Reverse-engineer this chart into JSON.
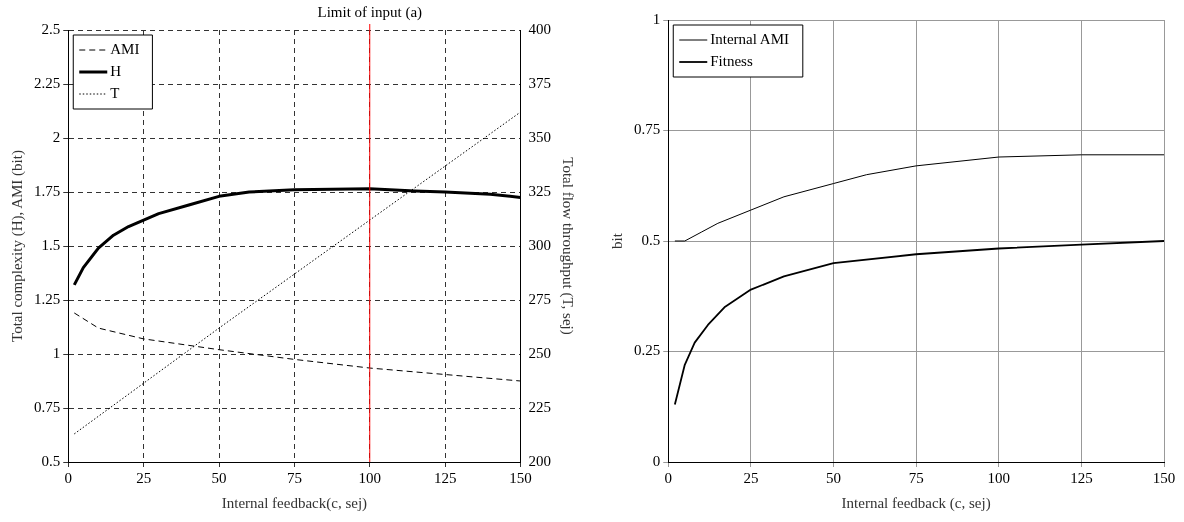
{
  "chart_data": [
    {
      "type": "line",
      "xlabel": "Internal feedback(c, sej)",
      "ylabel": "Total complexity (H), AMI (bit)",
      "y2label": "Total flow throughput (T, sej)",
      "xlim": [
        0,
        150
      ],
      "xticks": [
        0,
        25,
        50,
        75,
        100,
        125,
        150
      ],
      "ylim": [
        0.5,
        2.5
      ],
      "yticks": [
        0.5,
        0.75,
        1,
        1.25,
        1.5,
        1.75,
        2,
        2.25,
        2.5
      ],
      "y2lim": [
        200,
        400
      ],
      "y2ticks": [
        200,
        225,
        250,
        275,
        300,
        325,
        350,
        375,
        400
      ],
      "grid": true,
      "legend": "top left",
      "marker": "none",
      "ref_lines": [
        {
          "axis": "x",
          "value": 100,
          "label": "Limit of input (a)",
          "color": "#ff0000"
        }
      ],
      "series": [
        {
          "name": "AMI",
          "color": "#000000",
          "line_style": "dashed",
          "x": [
            2,
            10,
            25,
            40,
            50,
            75,
            100,
            125,
            150
          ],
          "values": [
            1.19,
            1.12,
            1.07,
            1.04,
            1.02,
            0.975,
            0.935,
            0.905,
            0.875
          ]
        },
        {
          "name": "H",
          "color": "#000000",
          "line_style": "solid",
          "x": [
            2,
            5,
            10,
            15,
            20,
            25,
            30,
            40,
            50,
            60,
            75,
            100,
            115,
            125,
            140,
            150
          ],
          "values": [
            1.32,
            1.4,
            1.49,
            1.55,
            1.59,
            1.62,
            1.65,
            1.69,
            1.73,
            1.75,
            1.76,
            1.765,
            1.755,
            1.75,
            1.74,
            1.725
          ]
        },
        {
          "name": "T",
          "color": "#000000",
          "line_style": "dotted",
          "axis": "y2",
          "x": [
            2,
            50,
            100,
            150
          ],
          "values": [
            213,
            262,
            312,
            362
          ]
        }
      ]
    },
    {
      "type": "line",
      "xlabel": "Internal feedback (c, sej)",
      "ylabel": "bit",
      "xlim": [
        0,
        150
      ],
      "xticks": [
        0,
        25,
        50,
        75,
        100,
        125,
        150
      ],
      "ylim": [
        0,
        1
      ],
      "yticks": [
        0,
        0.25,
        0.5,
        0.75,
        1
      ],
      "grid": true,
      "legend": "top left",
      "marker": "none",
      "series": [
        {
          "name": "Internal AMI",
          "color": "#000000",
          "line_style": "solid",
          "x": [
            2,
            5,
            10,
            15,
            25,
            35,
            50,
            60,
            75,
            100,
            125,
            150
          ],
          "values": [
            0.5,
            0.5,
            0.52,
            0.54,
            0.57,
            0.6,
            0.63,
            0.65,
            0.67,
            0.69,
            0.695,
            0.695
          ]
        },
        {
          "name": "Fitness",
          "color": "#000000",
          "line_style": "solid",
          "x": [
            2,
            5,
            8,
            12,
            17,
            25,
            35,
            50,
            75,
            100,
            125,
            150
          ],
          "values": [
            0.13,
            0.22,
            0.27,
            0.31,
            0.35,
            0.39,
            0.42,
            0.45,
            0.47,
            0.483,
            0.492,
            0.5
          ]
        }
      ]
    }
  ]
}
